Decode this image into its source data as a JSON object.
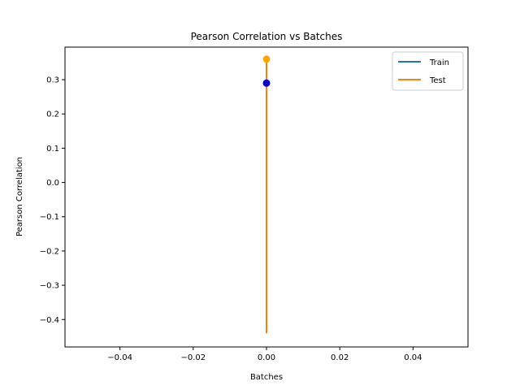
{
  "chart_data": {
    "type": "line",
    "title": "Pearson Correlation vs Batches",
    "xlabel": "Batches",
    "ylabel": "Pearson Correlation",
    "xlim": [
      -0.055,
      0.055
    ],
    "ylim": [
      -0.48,
      0.395
    ],
    "xticks": [
      -0.04,
      -0.02,
      0.0,
      0.02,
      0.04
    ],
    "xtick_labels": [
      "−0.04",
      "−0.02",
      "0.00",
      "0.02",
      "0.04"
    ],
    "yticks": [
      -0.4,
      -0.3,
      -0.2,
      -0.1,
      0.0,
      0.1,
      0.2,
      0.3
    ],
    "ytick_labels": [
      "−0.4",
      "−0.3",
      "−0.2",
      "−0.1",
      "0.0",
      "0.1",
      "0.2",
      "0.3"
    ],
    "grid": false,
    "legend_position": "top-right",
    "series": [
      {
        "name": "Train",
        "color": "#1f77b4",
        "x": [
          0,
          0
        ],
        "y": [
          0.29,
          0.235
        ],
        "marker": {
          "x": 0,
          "y": 0.29,
          "color": "#0000cd"
        }
      },
      {
        "name": "Test",
        "color": "#ff7f0e",
        "x": [
          0,
          0
        ],
        "y": [
          0.36,
          -0.44
        ],
        "marker": {
          "x": 0,
          "y": 0.36,
          "color": "#ffa500"
        }
      }
    ]
  }
}
